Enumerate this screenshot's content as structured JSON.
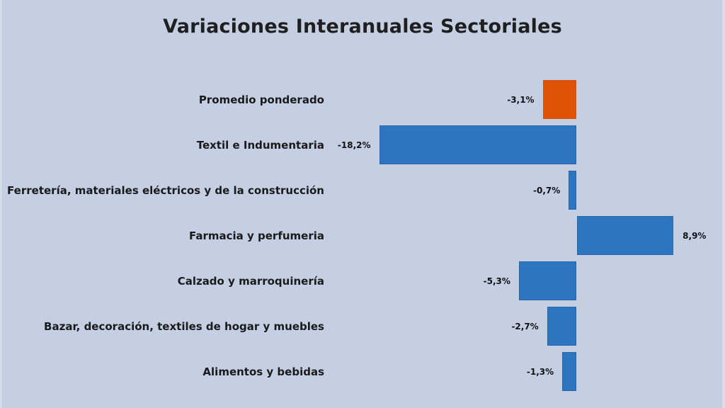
{
  "chart_data": {
    "type": "bar",
    "orientation": "horizontal",
    "title": "Variaciones Interanuales Sectoriales",
    "xlabel": "",
    "ylabel": "",
    "unit": "%",
    "grid": false,
    "legend": null,
    "categories": [
      "Promedio ponderado",
      "Textil e Indumentaria",
      "Ferretería, materiales eléctricos y  de la construcción",
      "Farmacia y perfumeria",
      "Calzado y marroquinería",
      "Bazar, decoración, textiles de hogar y muebles",
      "Alimentos y bebidas"
    ],
    "values": [
      -3.1,
      -18.2,
      -0.7,
      8.9,
      -5.3,
      -2.7,
      -1.3
    ],
    "value_labels": [
      "-3,1%",
      "-18,2%",
      "-0,7%",
      "8,9%",
      "-5,3%",
      "-2,7%",
      "-1,3%"
    ],
    "colors": [
      "#e05206",
      "#2e75c0",
      "#2e75c0",
      "#2e75c0",
      "#2e75c0",
      "#2e75c0",
      "#2e75c0"
    ],
    "highlight_color": "#e05206",
    "bar_color": "#2e75c0",
    "background_color": "#c5cfe3"
  }
}
